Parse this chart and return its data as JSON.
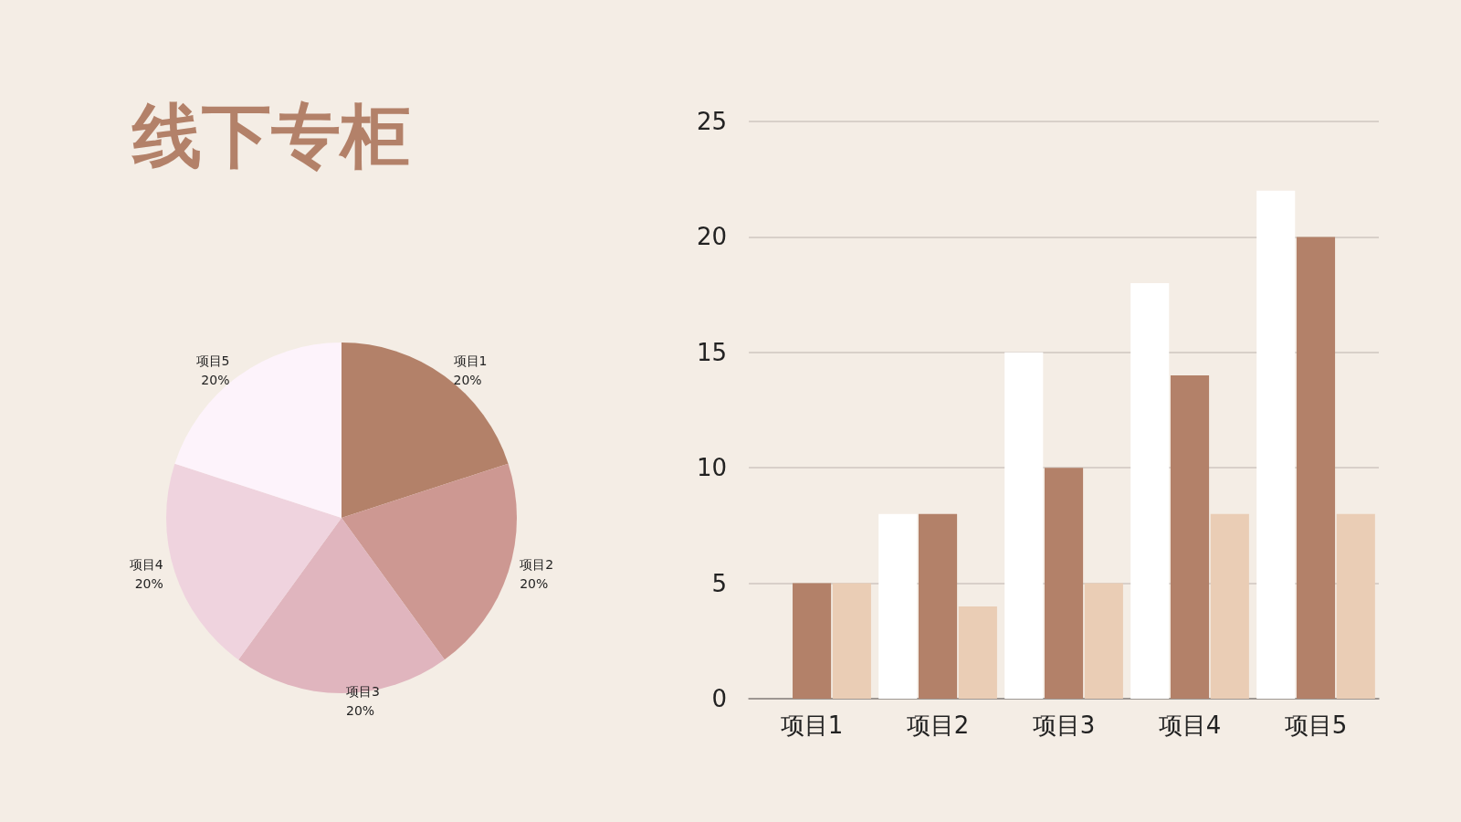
{
  "chart_data": [
    {
      "type": "pie",
      "title": "线下专柜",
      "categories": [
        "项目1",
        "项目2",
        "项目3",
        "项目4",
        "项目5"
      ],
      "values": [
        20,
        20,
        20,
        20,
        20
      ],
      "value_labels": [
        "20%",
        "20%",
        "20%",
        "20%",
        "20%"
      ],
      "colors": [
        "#b38169",
        "#cd9892",
        "#e0b5be",
        "#efd3de",
        "#fdf3fb"
      ]
    },
    {
      "type": "bar",
      "categories": [
        "项目1",
        "项目2",
        "项目3",
        "项目4",
        "项目5"
      ],
      "series": [
        {
          "color": "#ffffff",
          "values": [
            0,
            8,
            15,
            18,
            22
          ]
        },
        {
          "color": "#b38169",
          "values": [
            5,
            8,
            10,
            14,
            20
          ]
        },
        {
          "color": "#eacdb5",
          "values": [
            5,
            4,
            5,
            8,
            8
          ]
        }
      ],
      "ylim": [
        0,
        25
      ],
      "yticks": [
        0,
        5,
        10,
        15,
        20,
        25
      ],
      "grid": "y"
    }
  ]
}
